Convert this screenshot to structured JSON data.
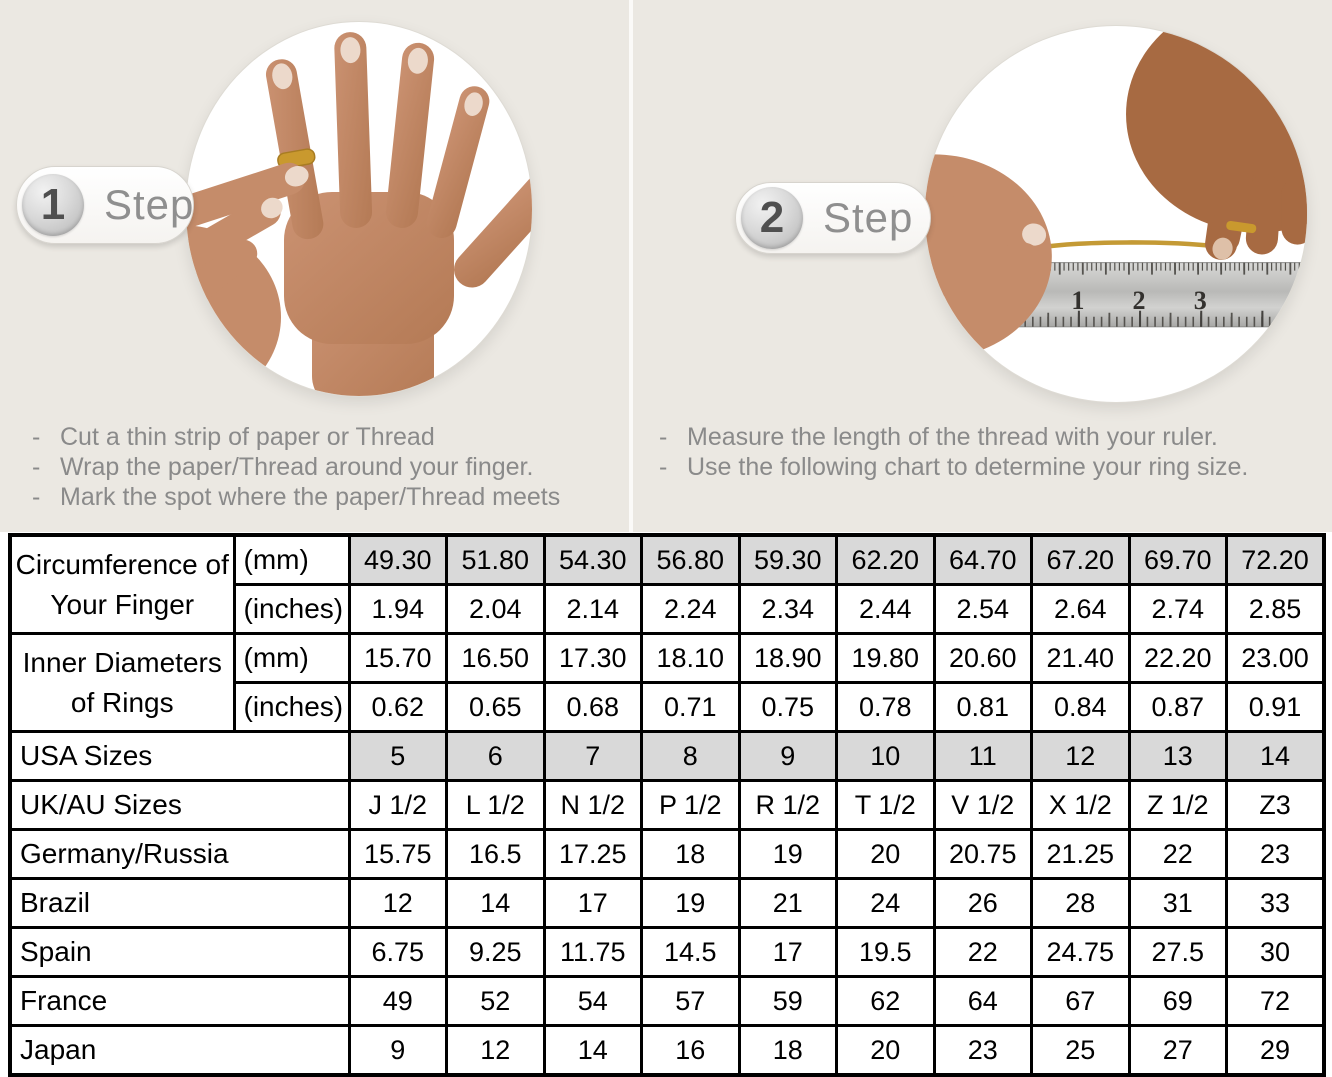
{
  "steps": [
    {
      "badge_number": "1",
      "badge_label": "Step",
      "bullets": [
        "Cut a thin strip of paper or Thread",
        "Wrap the paper/Thread around your finger.",
        "Mark the spot where the paper/Thread meets"
      ]
    },
    {
      "badge_number": "2",
      "badge_label": "Step",
      "bullets": [
        "Measure the length of the thread with your ruler.",
        "Use the following chart to determine your ring size."
      ]
    }
  ],
  "ruler": {
    "numbers": [
      "1",
      "2",
      "3"
    ]
  },
  "table": {
    "groups": [
      {
        "label": "Circumference of Your Finger",
        "rows": [
          {
            "unit": "(mm)",
            "shaded": true,
            "values": [
              "49.30",
              "51.80",
              "54.30",
              "56.80",
              "59.30",
              "62.20",
              "64.70",
              "67.20",
              "69.70",
              "72.20"
            ]
          },
          {
            "unit": "(inches)",
            "shaded": false,
            "values": [
              "1.94",
              "2.04",
              "2.14",
              "2.24",
              "2.34",
              "2.44",
              "2.54",
              "2.64",
              "2.74",
              "2.85"
            ]
          }
        ]
      },
      {
        "label": "Inner Diameters of Rings",
        "rows": [
          {
            "unit": "(mm)",
            "shaded": false,
            "values": [
              "15.70",
              "16.50",
              "17.30",
              "18.10",
              "18.90",
              "19.80",
              "20.60",
              "21.40",
              "22.20",
              "23.00"
            ]
          },
          {
            "unit": "(inches)",
            "shaded": false,
            "values": [
              "0.62",
              "0.65",
              "0.68",
              "0.71",
              "0.75",
              "0.78",
              "0.81",
              "0.84",
              "0.87",
              "0.91"
            ]
          }
        ]
      }
    ],
    "size_rows": [
      {
        "label": "USA Sizes",
        "shaded": true,
        "values": [
          "5",
          "6",
          "7",
          "8",
          "9",
          "10",
          "11",
          "12",
          "13",
          "14"
        ]
      },
      {
        "label": "UK/AU Sizes",
        "shaded": false,
        "values": [
          "J 1/2",
          "L 1/2",
          "N 1/2",
          "P 1/2",
          "R 1/2",
          "T 1/2",
          "V 1/2",
          "X 1/2",
          "Z 1/2",
          "Z3"
        ]
      },
      {
        "label": "Germany/Russia",
        "shaded": false,
        "values": [
          "15.75",
          "16.5",
          "17.25",
          "18",
          "19",
          "20",
          "20.75",
          "21.25",
          "22",
          "23"
        ]
      },
      {
        "label": "Brazil",
        "shaded": false,
        "values": [
          "12",
          "14",
          "17",
          "19",
          "21",
          "24",
          "26",
          "28",
          "31",
          "33"
        ]
      },
      {
        "label": "Spain",
        "shaded": false,
        "values": [
          "6.75",
          "9.25",
          "11.75",
          "14.5",
          "17",
          "19.5",
          "22",
          "24.75",
          "27.5",
          "30"
        ]
      },
      {
        "label": "France",
        "shaded": false,
        "values": [
          "49",
          "52",
          "54",
          "57",
          "59",
          "62",
          "64",
          "67",
          "69",
          "72"
        ]
      },
      {
        "label": "Japan",
        "shaded": false,
        "values": [
          "9",
          "12",
          "14",
          "16",
          "18",
          "20",
          "23",
          "25",
          "27",
          "29"
        ]
      }
    ]
  },
  "colors": {
    "panel_bg": "#ebe8e2",
    "table_shade": "#d9d9d9",
    "table_border": "#000000",
    "step_text": "#8f8f8f",
    "bullet_text": "#8a8a8a",
    "badge_number": "#4f4f4f",
    "gold": "#c9992e",
    "skin_light": "#c58c6a",
    "skin_dark": "#a76a42"
  }
}
